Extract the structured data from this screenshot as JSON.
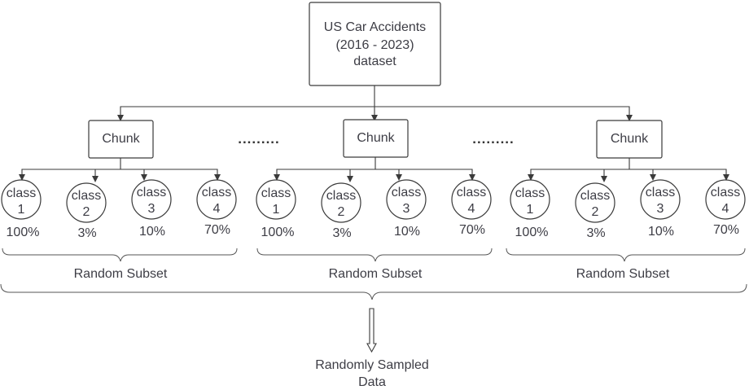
{
  "dataset": {
    "lines": [
      "US Car Accidents",
      "(2016 - 2023)",
      "dataset"
    ]
  },
  "ellipsis": ".........",
  "groups": [
    {
      "chunk_label": "Chunk",
      "classes": [
        {
          "label": "class",
          "number": "1",
          "percent": "100%"
        },
        {
          "label": "class",
          "number": "2",
          "percent": "3%"
        },
        {
          "label": "class",
          "number": "3",
          "percent": "10%"
        },
        {
          "label": "class",
          "number": "4",
          "percent": "70%"
        }
      ],
      "subset_label": "Random Subset"
    },
    {
      "chunk_label": "Chunk",
      "classes": [
        {
          "label": "class",
          "number": "1",
          "percent": "100%"
        },
        {
          "label": "class",
          "number": "2",
          "percent": "3%"
        },
        {
          "label": "class",
          "number": "3",
          "percent": "10%"
        },
        {
          "label": "class",
          "number": "4",
          "percent": "70%"
        }
      ],
      "subset_label": "Random Subset"
    },
    {
      "chunk_label": "Chunk",
      "classes": [
        {
          "label": "class",
          "number": "1",
          "percent": "100%"
        },
        {
          "label": "class",
          "number": "2",
          "percent": "3%"
        },
        {
          "label": "class",
          "number": "3",
          "percent": "10%"
        },
        {
          "label": "class",
          "number": "4",
          "percent": "70%"
        }
      ],
      "subset_label": "Random Subset"
    }
  ],
  "output": {
    "lines": [
      "Randomly Sampled",
      "Data"
    ]
  }
}
